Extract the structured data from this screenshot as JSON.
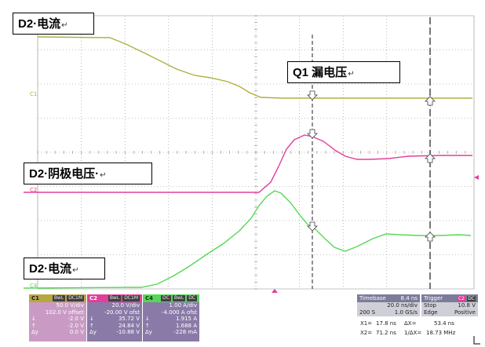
{
  "labels": {
    "top_left": "D2·电流",
    "q1_vds": "Q1 漏电压",
    "d2_vak": "D2·阴极电压·",
    "bottom_left": "D2·电流",
    "return_mark": "↵"
  },
  "channel_tags": {
    "c1": "C1",
    "c2": "C2",
    "c4": "C4"
  },
  "colors": {
    "c1_trace": "#b0b040",
    "c2_trace": "#e0409a",
    "c4_trace": "#55d855",
    "grid": "#8a8a8a",
    "c1_panel": "#c99bc4",
    "c2_panel": "#8a7aa8",
    "c4_panel": "#8a7aa8"
  },
  "panels": {
    "c1": {
      "name": "C1",
      "chips": [
        "BwL",
        "DC1M"
      ],
      "rows": [
        {
          "sym": "",
          "val": "50.0 V/div"
        },
        {
          "sym": "",
          "val": "102.0 V offset"
        },
        {
          "sym": "↓",
          "val": "-2.0 V"
        },
        {
          "sym": "↑",
          "val": "-2.0 V"
        },
        {
          "sym": "Δy",
          "val": "0.0 V"
        }
      ]
    },
    "c2": {
      "name": "C2",
      "chips": [
        "BwL",
        "DC1M"
      ],
      "rows": [
        {
          "sym": "",
          "val": "20.0 V/div"
        },
        {
          "sym": "",
          "val": "-20.00 V ofst"
        },
        {
          "sym": "↓",
          "val": "35.72 V"
        },
        {
          "sym": "↑",
          "val": "24.84 V"
        },
        {
          "sym": "Δy",
          "val": "-10.88 V"
        }
      ]
    },
    "c4": {
      "name": "C4",
      "chips": [
        "DC",
        "BwL",
        "DC"
      ],
      "rows": [
        {
          "sym": "",
          "val": "1.00 A/div"
        },
        {
          "sym": "",
          "val": "-4.000 A ofst"
        },
        {
          "sym": "↓",
          "val": "1.915 A"
        },
        {
          "sym": "↑",
          "val": "1.688 A"
        },
        {
          "sym": "Δy",
          "val": "-228 mA"
        }
      ]
    }
  },
  "timebase": {
    "title": "Timebase",
    "value": "8.4 ns",
    "rows": [
      {
        "left": "",
        "right": "20.0 ns/div"
      },
      {
        "left": "200 S",
        "right": "1.0 GS/s"
      }
    ]
  },
  "trigger": {
    "title": "Trigger",
    "chips": [
      "C2",
      "DC"
    ],
    "rows": [
      {
        "left": "Stop",
        "right": "10.8 V"
      },
      {
        "left": "Edge",
        "right": "Positive"
      }
    ]
  },
  "measurements": {
    "x1_label": "X1=",
    "x1_value": "17.8 ns",
    "dx_label": "ΔX=",
    "dx_value": "53.4 ns",
    "x2_label": "X2=",
    "x2_value": "71.2 ns",
    "inv_dx_label": "1/ΔX=",
    "inv_dx_value": "18.73 MHz"
  }
}
